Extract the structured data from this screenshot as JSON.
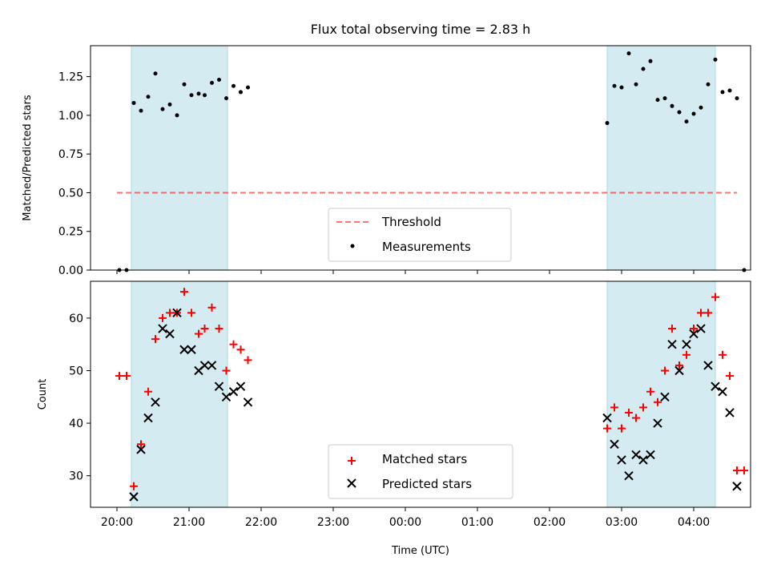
{
  "title": "Flux total observing time = 2.83 h",
  "colors": {
    "shade": "#add8e6",
    "threshold": "#ff0000",
    "measurements": "#000000",
    "matched": "#ff0000",
    "predicted": "#000000"
  },
  "chart_data": [
    {
      "type": "scatter",
      "ylabel": "Matched/Predicted stars",
      "ylim": [
        0,
        1.45
      ],
      "yticks": [
        0.0,
        0.25,
        0.5,
        0.75,
        1.0,
        1.25
      ],
      "ytick_labels": [
        "0.00",
        "0.25",
        "0.50",
        "0.75",
        "1.00",
        "1.25"
      ],
      "legend_position": "lower center",
      "shaded_intervals": [
        [
          "20:12",
          "21:32"
        ],
        [
          "02:48",
          "04:18"
        ]
      ],
      "threshold": {
        "name": "Threshold",
        "y": 0.5,
        "x_range": [
          "20:00",
          "04:36"
        ],
        "style": "dashed"
      },
      "series": [
        {
          "name": "Measurements",
          "marker": "dot",
          "points": [
            [
              "20:02",
              0.0
            ],
            [
              "20:08",
              0.0
            ],
            [
              "20:14",
              1.08
            ],
            [
              "20:20",
              1.03
            ],
            [
              "20:26",
              1.12
            ],
            [
              "20:32",
              1.27
            ],
            [
              "20:38",
              1.04
            ],
            [
              "20:44",
              1.07
            ],
            [
              "20:50",
              1.0
            ],
            [
              "20:56",
              1.2
            ],
            [
              "21:02",
              1.13
            ],
            [
              "21:08",
              1.14
            ],
            [
              "21:13",
              1.13
            ],
            [
              "21:19",
              1.21
            ],
            [
              "21:25",
              1.23
            ],
            [
              "21:31",
              1.11
            ],
            [
              "21:37",
              1.19
            ],
            [
              "21:43",
              1.15
            ],
            [
              "21:49",
              1.18
            ],
            [
              "02:48",
              0.95
            ],
            [
              "02:54",
              1.19
            ],
            [
              "03:00",
              1.18
            ],
            [
              "03:06",
              1.4
            ],
            [
              "03:12",
              1.2
            ],
            [
              "03:18",
              1.3
            ],
            [
              "03:24",
              1.35
            ],
            [
              "03:30",
              1.1
            ],
            [
              "03:36",
              1.11
            ],
            [
              "03:42",
              1.06
            ],
            [
              "03:48",
              1.02
            ],
            [
              "03:54",
              0.96
            ],
            [
              "04:00",
              1.01
            ],
            [
              "04:06",
              1.05
            ],
            [
              "04:12",
              1.2
            ],
            [
              "04:18",
              1.36
            ],
            [
              "04:24",
              1.15
            ],
            [
              "04:30",
              1.16
            ],
            [
              "04:36",
              1.11
            ],
            [
              "04:42",
              0.0
            ]
          ]
        }
      ]
    },
    {
      "type": "scatter",
      "ylabel": "Count",
      "xlabel": "Time (UTC)",
      "ylim": [
        24,
        67
      ],
      "yticks": [
        30,
        40,
        50,
        60
      ],
      "x_ticks": [
        "20:00",
        "21:00",
        "22:00",
        "23:00",
        "00:00",
        "01:00",
        "02:00",
        "03:00",
        "04:00"
      ],
      "legend_position": "lower center",
      "shaded_intervals": [
        [
          "20:12",
          "21:32"
        ],
        [
          "02:48",
          "04:18"
        ]
      ],
      "series": [
        {
          "name": "Matched stars",
          "marker": "plus",
          "points": [
            [
              "20:02",
              49
            ],
            [
              "20:08",
              49
            ],
            [
              "20:14",
              28
            ],
            [
              "20:20",
              36
            ],
            [
              "20:26",
              46
            ],
            [
              "20:32",
              56
            ],
            [
              "20:38",
              60
            ],
            [
              "20:44",
              61
            ],
            [
              "20:50",
              61
            ],
            [
              "20:56",
              65
            ],
            [
              "21:02",
              61
            ],
            [
              "21:08",
              57
            ],
            [
              "21:13",
              58
            ],
            [
              "21:19",
              62
            ],
            [
              "21:25",
              58
            ],
            [
              "21:31",
              50
            ],
            [
              "21:37",
              55
            ],
            [
              "21:43",
              54
            ],
            [
              "21:49",
              52
            ],
            [
              "02:48",
              39
            ],
            [
              "02:54",
              43
            ],
            [
              "03:00",
              39
            ],
            [
              "03:06",
              42
            ],
            [
              "03:12",
              41
            ],
            [
              "03:18",
              43
            ],
            [
              "03:24",
              46
            ],
            [
              "03:30",
              44
            ],
            [
              "03:36",
              50
            ],
            [
              "03:42",
              58
            ],
            [
              "03:48",
              51
            ],
            [
              "03:54",
              53
            ],
            [
              "04:00",
              58
            ],
            [
              "04:06",
              61
            ],
            [
              "04:12",
              61
            ],
            [
              "04:18",
              64
            ],
            [
              "04:24",
              53
            ],
            [
              "04:30",
              49
            ],
            [
              "04:36",
              31
            ],
            [
              "04:42",
              31
            ]
          ]
        },
        {
          "name": "Predicted stars",
          "marker": "x",
          "points": [
            [
              "20:14",
              26
            ],
            [
              "20:20",
              35
            ],
            [
              "20:26",
              41
            ],
            [
              "20:32",
              44
            ],
            [
              "20:38",
              58
            ],
            [
              "20:44",
              57
            ],
            [
              "20:50",
              61
            ],
            [
              "20:56",
              54
            ],
            [
              "21:02",
              54
            ],
            [
              "21:08",
              50
            ],
            [
              "21:13",
              51
            ],
            [
              "21:19",
              51
            ],
            [
              "21:25",
              47
            ],
            [
              "21:31",
              45
            ],
            [
              "21:37",
              46
            ],
            [
              "21:43",
              47
            ],
            [
              "21:49",
              44
            ],
            [
              "02:48",
              41
            ],
            [
              "02:54",
              36
            ],
            [
              "03:00",
              33
            ],
            [
              "03:06",
              30
            ],
            [
              "03:12",
              34
            ],
            [
              "03:18",
              33
            ],
            [
              "03:24",
              34
            ],
            [
              "03:30",
              40
            ],
            [
              "03:36",
              45
            ],
            [
              "03:42",
              55
            ],
            [
              "03:48",
              50
            ],
            [
              "03:54",
              55
            ],
            [
              "04:00",
              57
            ],
            [
              "04:06",
              58
            ],
            [
              "04:12",
              51
            ],
            [
              "04:18",
              47
            ],
            [
              "04:24",
              46
            ],
            [
              "04:30",
              42
            ],
            [
              "04:36",
              28
            ]
          ]
        }
      ]
    }
  ]
}
